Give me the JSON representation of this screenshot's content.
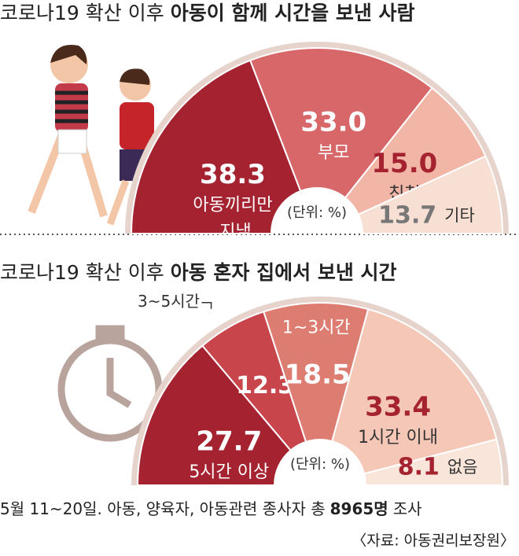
{
  "chart_data": [
    {
      "type": "pie",
      "title": [
        "코로나19 확산 이후",
        "아동이 함께 시간을 보낸 사람"
      ],
      "categories": [
        "아동끼리만 지냄",
        "부모",
        "친척",
        "기타"
      ],
      "values": [
        38.3,
        33.0,
        15.0,
        13.7
      ],
      "value_labels": [
        "38.3",
        "33.0",
        "15.0",
        "13.7"
      ],
      "colors": [
        "#a52330",
        "#d8676a",
        "#f1b6a6",
        "#f8dfd3"
      ],
      "unit_note": "(단위: %)"
    },
    {
      "type": "pie",
      "title": [
        "코로나19 확산 이후",
        "아동 혼자 집에서 보낸 시간"
      ],
      "categories": [
        "5시간 이상",
        "3~5시간",
        "1~3시간",
        "1시간 이내",
        "없음"
      ],
      "values": [
        27.7,
        12.3,
        18.5,
        33.4,
        8.1
      ],
      "value_labels": [
        "27.7",
        "12.3",
        "18.5",
        "33.4",
        "8.1"
      ],
      "colors": [
        "#a52330",
        "#c8464b",
        "#dd7c71",
        "#f5c7b7",
        "#fae5db"
      ],
      "unit_note": "(단위: %)"
    }
  ],
  "footer": {
    "note": [
      "5월 11~20일. 아동, 양육자, 아동관련 종사자 총",
      "8965명",
      "조사"
    ],
    "source": "〈자료: 아동권리보장원〉"
  }
}
